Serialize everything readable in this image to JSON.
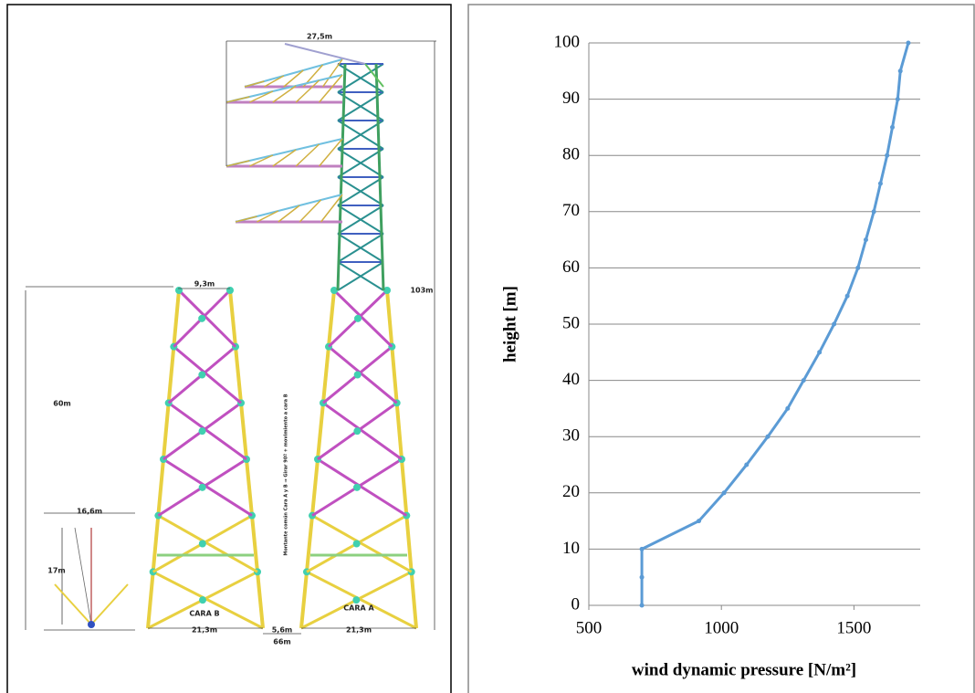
{
  "diagram": {
    "labels": [
      "27,5m",
      "103m",
      "9,3m",
      "60m",
      "16,6m",
      "17m",
      "CARA B",
      "CARA A",
      "21,3m",
      "5,6m",
      "21,3m",
      "66m",
      "Montante común Cara A y B ⇒ Girar 90º + movimiento a cara B"
    ]
  },
  "chart_data": {
    "type": "line",
    "x_label": "wind dynamic pressure [N/m²]",
    "y_label": "height [m]",
    "series": [
      {
        "color": "#5b9bd5",
        "x": [
          700,
          700,
          700,
          915,
          1010,
          1095,
          1175,
          1250,
          1310,
          1370,
          1425,
          1475,
          1515,
          1545,
          1575,
          1600,
          1625,
          1645,
          1665,
          1675,
          1705
        ],
        "values": [
          0,
          5,
          10,
          15,
          20,
          25,
          30,
          35,
          40,
          45,
          50,
          55,
          60,
          65,
          70,
          75,
          80,
          85,
          90,
          95,
          100
        ]
      }
    ],
    "xlim": [
      500,
      1750
    ],
    "xticks": [
      500,
      1000,
      1500
    ],
    "ylim": [
      0,
      100
    ],
    "yticks": [
      0,
      10,
      20,
      30,
      40,
      50,
      60,
      70,
      80,
      90,
      100
    ],
    "grid": true
  }
}
